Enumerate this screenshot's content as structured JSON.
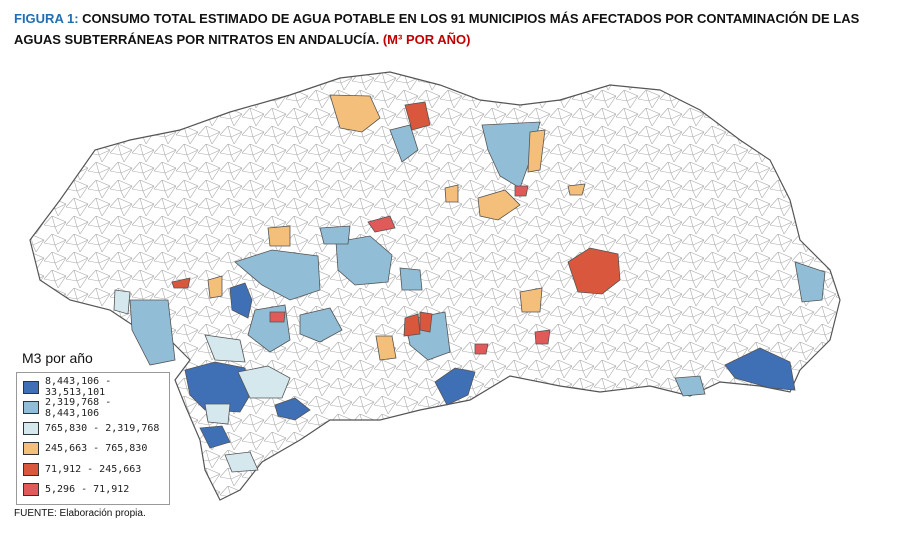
{
  "title": {
    "label": "FIGURA 1:",
    "text": "CONSUMO TOTAL ESTIMADO DE AGUA POTABLE EN LOS 91 MUNICIPIOS MÁS AFECTADOS POR CONTAMINACIÓN DE LAS AGUAS SUBTERRÁNEAS POR NITRATOS EN ANDALUCÍA.",
    "unit": "(M³ POR AÑO)"
  },
  "legend": {
    "title": "M3 por año",
    "items": [
      {
        "label": "8,443,106 - 33,513,101",
        "color": "#3f6fb5"
      },
      {
        "label": "2,319,768 - 8,443,106",
        "color": "#92bdd6"
      },
      {
        "label": "765,830 - 2,319,768",
        "color": "#d4e8ee"
      },
      {
        "label": "245,663 - 765,830",
        "color": "#f4bf7a"
      },
      {
        "label": "71,912 - 245,663",
        "color": "#d9573c"
      },
      {
        "label": "5,296 - 71,912",
        "color": "#e05a5a"
      }
    ]
  },
  "source": "FUENTE: Elaboración propia."
}
